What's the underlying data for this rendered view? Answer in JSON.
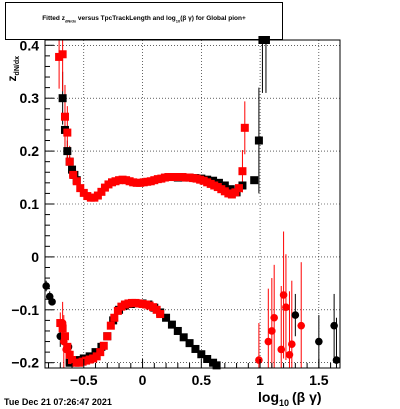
{
  "title": "Fitted  z_dN/dx versus TpcTrackLength and log10(β γ) for Global pion+",
  "title_parts": {
    "pre": "Fitted  z",
    "sub1": "dN/dx",
    "mid": " versus TpcTrackLength and log",
    "sub2": "10",
    "post": "(β γ) for Global pion+"
  },
  "footer": "Tue Dec 21 07:26:47 2021",
  "ylabel": "z_dN/dx",
  "ylabel_text": "z",
  "ylabel_sub": "dN/dx",
  "xlabel_main": "log",
  "xlabel_sub": "10",
  "xlabel_post": "(β γ)",
  "chart_data": {
    "type": "scatter",
    "title": "Fitted  z_dN/dx versus TpcTrackLength and log10(β γ) for Global pion+",
    "xlabel": "log10(β γ)",
    "ylabel": "z_dN/dx",
    "xlim": [
      -0.83,
      1.68
    ],
    "ylim": [
      -0.21,
      0.41
    ],
    "xticks": [
      -0.5,
      0,
      0.5,
      1,
      1.5
    ],
    "xtick_labels": [
      "−0.5",
      "0",
      "0.5",
      "1",
      "1.5"
    ],
    "yticks": [
      -0.2,
      -0.1,
      0,
      0.1,
      0.2,
      0.3,
      0.4
    ],
    "ytick_labels": [
      "−0.2",
      "−0.1",
      "0",
      "0.1",
      "0.2",
      "0.3",
      "0.4"
    ],
    "grid": true,
    "colors": {
      "black": "#000000",
      "red": "#ff0000"
    },
    "series": [
      {
        "color": "#000000",
        "marker": "square",
        "points": [
          {
            "x": -0.68,
            "y": 0.3,
            "err": 0.05
          },
          {
            "x": -0.66,
            "y": 0.24,
            "err": 0.03
          },
          {
            "x": -0.64,
            "y": 0.2,
            "err": 0.02
          },
          {
            "x": -0.62,
            "y": 0.18,
            "err": 0.01
          },
          {
            "x": -0.6,
            "y": 0.165
          },
          {
            "x": -0.58,
            "y": 0.155
          },
          {
            "x": -0.56,
            "y": 0.145
          },
          {
            "x": 0.3,
            "y": 0.15
          },
          {
            "x": 0.35,
            "y": 0.15
          },
          {
            "x": 0.4,
            "y": 0.15
          },
          {
            "x": 0.45,
            "y": 0.149
          },
          {
            "x": 0.5,
            "y": 0.148
          },
          {
            "x": 0.55,
            "y": 0.146
          },
          {
            "x": 0.6,
            "y": 0.144
          },
          {
            "x": 0.65,
            "y": 0.14
          },
          {
            "x": 0.7,
            "y": 0.135
          },
          {
            "x": 0.75,
            "y": 0.128
          },
          {
            "x": 0.8,
            "y": 0.122
          },
          {
            "x": 0.85,
            "y": 0.135
          },
          {
            "x": 0.95,
            "y": 0.145
          },
          {
            "x": 0.99,
            "y": 0.22,
            "err": 0.1
          },
          {
            "x": 1.02,
            "y": 0.41,
            "err": 0.1
          },
          {
            "x": 1.05,
            "y": 0.41,
            "err": 0.1
          },
          {
            "x": -0.62,
            "y": -0.2
          },
          {
            "x": -0.6,
            "y": -0.198
          },
          {
            "x": -0.55,
            "y": -0.195
          },
          {
            "x": -0.5,
            "y": -0.192
          },
          {
            "x": -0.45,
            "y": -0.188
          },
          {
            "x": -0.4,
            "y": -0.18
          },
          {
            "x": -0.35,
            "y": -0.17
          },
          {
            "x": -0.3,
            "y": -0.15
          },
          {
            "x": -0.25,
            "y": -0.12
          },
          {
            "x": -0.2,
            "y": -0.1
          },
          {
            "x": -0.15,
            "y": -0.092
          },
          {
            "x": -0.1,
            "y": -0.089
          },
          {
            "x": -0.05,
            "y": -0.088
          },
          {
            "x": 0.0,
            "y": -0.088
          },
          {
            "x": 0.05,
            "y": -0.09
          },
          {
            "x": 0.1,
            "y": -0.096
          },
          {
            "x": 0.15,
            "y": -0.105
          },
          {
            "x": 0.2,
            "y": -0.115
          },
          {
            "x": 0.25,
            "y": -0.128
          },
          {
            "x": 0.3,
            "y": -0.14
          },
          {
            "x": 0.35,
            "y": -0.152
          },
          {
            "x": 0.4,
            "y": -0.163
          },
          {
            "x": 0.45,
            "y": -0.174
          },
          {
            "x": 0.5,
            "y": -0.184
          },
          {
            "x": 0.55,
            "y": -0.193
          },
          {
            "x": 0.6,
            "y": -0.2
          },
          {
            "x": 0.63,
            "y": -0.205
          }
        ]
      },
      {
        "color": "#000000",
        "marker": "circle",
        "points": [
          {
            "x": -0.82,
            "y": -0.055,
            "err": 0.01
          },
          {
            "x": -0.79,
            "y": -0.075,
            "err": 0.01
          },
          {
            "x": -0.77,
            "y": -0.085
          },
          {
            "x": -0.7,
            "y": -0.15,
            "err": 0.02
          },
          {
            "x": -0.63,
            "y": -0.17
          },
          {
            "x": 1.3,
            "y": -0.11,
            "err": 0.04
          },
          {
            "x": 1.5,
            "y": -0.16,
            "err": 0.05
          },
          {
            "x": 1.63,
            "y": -0.13,
            "err": 0.06
          },
          {
            "x": 1.65,
            "y": -0.195,
            "err": 0.08
          }
        ]
      },
      {
        "color": "#ff0000",
        "marker": "square",
        "points": [
          {
            "x": -0.71,
            "y": 0.378,
            "err": 0.06
          },
          {
            "x": -0.68,
            "y": 0.383,
            "err": 0.07
          },
          {
            "x": -0.66,
            "y": 0.265,
            "err": 0.06
          },
          {
            "x": -0.64,
            "y": 0.235,
            "err": 0.05
          },
          {
            "x": -0.62,
            "y": 0.18,
            "err": 0.03
          },
          {
            "x": -0.59,
            "y": 0.155
          },
          {
            "x": -0.56,
            "y": 0.143
          },
          {
            "x": -0.53,
            "y": 0.13
          },
          {
            "x": -0.5,
            "y": 0.121
          },
          {
            "x": -0.47,
            "y": 0.115
          },
          {
            "x": -0.44,
            "y": 0.112
          },
          {
            "x": -0.41,
            "y": 0.112
          },
          {
            "x": -0.38,
            "y": 0.116
          },
          {
            "x": -0.35,
            "y": 0.123
          },
          {
            "x": -0.32,
            "y": 0.131
          },
          {
            "x": -0.29,
            "y": 0.137
          },
          {
            "x": -0.26,
            "y": 0.141
          },
          {
            "x": -0.23,
            "y": 0.143
          },
          {
            "x": -0.2,
            "y": 0.145
          },
          {
            "x": -0.17,
            "y": 0.146
          },
          {
            "x": -0.14,
            "y": 0.145
          },
          {
            "x": -0.11,
            "y": 0.143
          },
          {
            "x": -0.08,
            "y": 0.141
          },
          {
            "x": -0.05,
            "y": 0.14
          },
          {
            "x": -0.02,
            "y": 0.14
          },
          {
            "x": 0.01,
            "y": 0.141
          },
          {
            "x": 0.04,
            "y": 0.142
          },
          {
            "x": 0.07,
            "y": 0.143
          },
          {
            "x": 0.1,
            "y": 0.145
          },
          {
            "x": 0.13,
            "y": 0.147
          },
          {
            "x": 0.16,
            "y": 0.148
          },
          {
            "x": 0.19,
            "y": 0.15
          },
          {
            "x": 0.22,
            "y": 0.151
          },
          {
            "x": 0.25,
            "y": 0.151
          },
          {
            "x": 0.28,
            "y": 0.151
          },
          {
            "x": 0.31,
            "y": 0.151
          },
          {
            "x": 0.34,
            "y": 0.151
          },
          {
            "x": 0.37,
            "y": 0.15
          },
          {
            "x": 0.4,
            "y": 0.15
          },
          {
            "x": 0.43,
            "y": 0.149
          },
          {
            "x": 0.46,
            "y": 0.148
          },
          {
            "x": 0.49,
            "y": 0.146
          },
          {
            "x": 0.52,
            "y": 0.144
          },
          {
            "x": 0.55,
            "y": 0.141
          },
          {
            "x": 0.58,
            "y": 0.138
          },
          {
            "x": 0.61,
            "y": 0.135
          },
          {
            "x": 0.64,
            "y": 0.132
          },
          {
            "x": 0.67,
            "y": 0.128
          },
          {
            "x": 0.7,
            "y": 0.124
          },
          {
            "x": 0.73,
            "y": 0.12
          },
          {
            "x": 0.76,
            "y": 0.118
          },
          {
            "x": 0.79,
            "y": 0.122
          },
          {
            "x": 0.82,
            "y": 0.13
          },
          {
            "x": 0.85,
            "y": 0.162,
            "err": 0.04
          },
          {
            "x": 0.87,
            "y": 0.244,
            "err": 0.05
          },
          {
            "x": -0.7,
            "y": -0.125,
            "err": 0.02
          },
          {
            "x": -0.68,
            "y": -0.135
          },
          {
            "x": -0.66,
            "y": -0.15
          },
          {
            "x": -0.64,
            "y": -0.17
          },
          {
            "x": -0.62,
            "y": -0.185
          },
          {
            "x": -0.6,
            "y": -0.195
          },
          {
            "x": -0.57,
            "y": -0.2
          },
          {
            "x": -0.54,
            "y": -0.2
          },
          {
            "x": -0.51,
            "y": -0.198
          },
          {
            "x": -0.48,
            "y": -0.196
          },
          {
            "x": -0.45,
            "y": -0.194
          },
          {
            "x": -0.42,
            "y": -0.192
          },
          {
            "x": -0.39,
            "y": -0.188
          },
          {
            "x": -0.36,
            "y": -0.18
          },
          {
            "x": -0.33,
            "y": -0.168
          },
          {
            "x": -0.3,
            "y": -0.15
          },
          {
            "x": -0.27,
            "y": -0.13
          },
          {
            "x": -0.24,
            "y": -0.115
          },
          {
            "x": -0.21,
            "y": -0.102
          },
          {
            "x": -0.18,
            "y": -0.094
          },
          {
            "x": -0.15,
            "y": -0.09
          },
          {
            "x": -0.12,
            "y": -0.088
          },
          {
            "x": -0.09,
            "y": -0.087
          },
          {
            "x": -0.06,
            "y": -0.087
          },
          {
            "x": -0.03,
            "y": -0.088
          },
          {
            "x": 0.0,
            "y": -0.089
          },
          {
            "x": 0.03,
            "y": -0.09
          },
          {
            "x": 0.06,
            "y": -0.092
          },
          {
            "x": 0.09,
            "y": -0.095
          },
          {
            "x": 0.12,
            "y": -0.1
          },
          {
            "x": 0.15,
            "y": -0.108
          }
        ]
      },
      {
        "color": "#ff0000",
        "marker": "circle",
        "points": [
          {
            "x": -0.68,
            "y": -0.125,
            "err": 0.04
          },
          {
            "x": -0.67,
            "y": -0.16,
            "err": 0.05
          },
          {
            "x": -0.65,
            "y": -0.175,
            "err": 0.03
          },
          {
            "x": 0.99,
            "y": -0.195,
            "err": 0.07
          },
          {
            "x": 1.07,
            "y": -0.16,
            "err": 0.1
          },
          {
            "x": 1.1,
            "y": -0.14,
            "err": 0.1
          },
          {
            "x": 1.12,
            "y": -0.115,
            "err": 0.1
          },
          {
            "x": 1.18,
            "y": -0.175,
            "err": 0.12
          },
          {
            "x": 1.2,
            "y": -0.072,
            "err": 0.12
          },
          {
            "x": 1.22,
            "y": -0.095,
            "err": 0.1
          },
          {
            "x": 1.25,
            "y": -0.185,
            "err": 0.12
          },
          {
            "x": 1.27,
            "y": -0.165,
            "err": 0.12
          },
          {
            "x": 1.35,
            "y": -0.13,
            "err": 0.12
          }
        ]
      }
    ]
  }
}
